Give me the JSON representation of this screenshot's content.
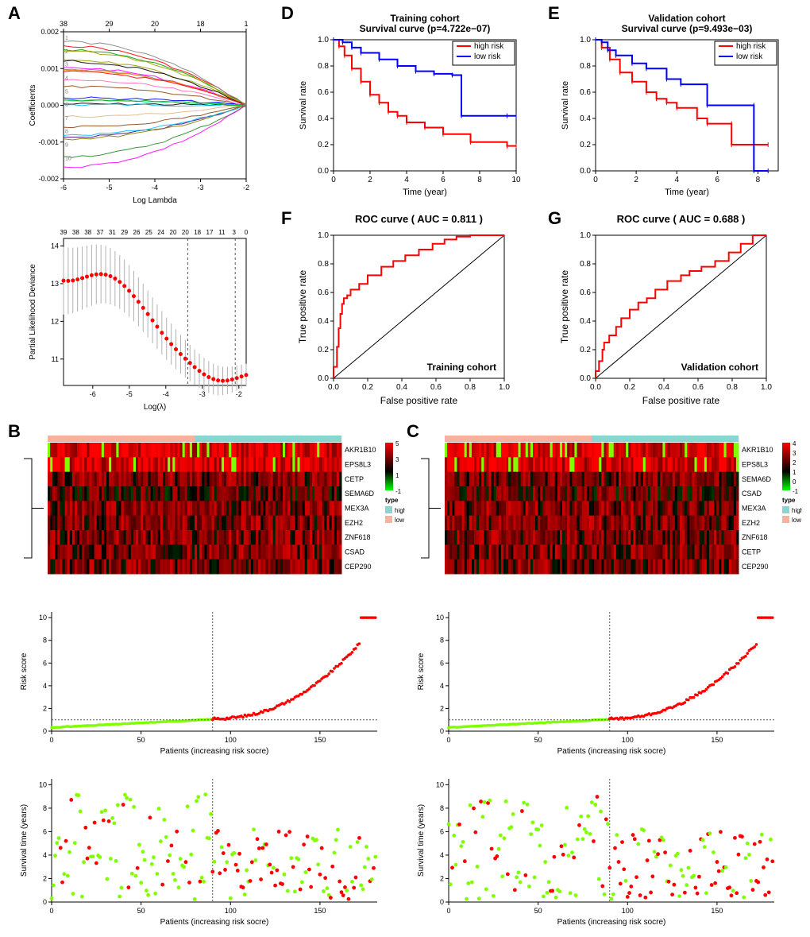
{
  "labels": {
    "A": "A",
    "B": "B",
    "C": "C",
    "D": "D",
    "E": "E",
    "F": "F",
    "G": "G"
  },
  "lasso": {
    "topticks": [
      "38",
      "29",
      "20",
      "18",
      "1"
    ],
    "ylabel": "Coefficients",
    "xlabel": "Log Lambda",
    "yticks": [
      "-0.002",
      "-0.001",
      "0.000",
      "0.001",
      "0.002"
    ],
    "xticks": [
      "-6",
      "-5",
      "-4",
      "-3",
      "-2"
    ],
    "line_colors": [
      "#000000",
      "#ff0000",
      "#00a000",
      "#00bfff",
      "#ff00ff",
      "#a0a000",
      "#808080",
      "#8b4513",
      "#00ff7f",
      "#0000ff",
      "#ff7f00",
      "#4b0082",
      "#228b22",
      "#deb887",
      "#808000",
      "#ff69b4"
    ]
  },
  "deviance": {
    "topticks": [
      "39",
      "38",
      "38",
      "37",
      "31",
      "29",
      "26",
      "25",
      "24",
      "20",
      "20",
      "18",
      "17",
      "11",
      "3",
      "0"
    ],
    "ylabel": "Partial Likelihood Deviance",
    "xlabel": "Log(λ)",
    "yticks": [
      "11",
      "12",
      "13",
      "14"
    ],
    "xticks": [
      "-6",
      "-5",
      "-4",
      "-3",
      "-2"
    ],
    "vlines": [
      -3.4,
      -2.1
    ],
    "points_color": "#ff0000",
    "error_color": "#b0b0b0"
  },
  "heatmap": {
    "genesB": [
      "AKR1B10",
      "EPS8L3",
      "CETP",
      "SEMA6D",
      "MEX3A",
      "EZH2",
      "ZNF618",
      "CSAD",
      "CEP290"
    ],
    "genesC": [
      "AKR1B10",
      "EPS8L3",
      "SEMA6D",
      "CSAD",
      "MEX3A",
      "EZH2",
      "ZNF618",
      "CETP",
      "CEP290"
    ],
    "legend_title": "type",
    "legend_high": "high",
    "legend_low": "low",
    "scale_ticksB": [
      "5",
      "3",
      "1",
      "-1"
    ],
    "scale_ticksC": [
      "4",
      "3",
      "2",
      "1",
      "0",
      "-1"
    ],
    "bar_high": "#f7b1a0",
    "bar_low": "#87d6d0",
    "scale_high": "#ff0000",
    "scale_mid": "#000000",
    "scale_low": "#00ff00"
  },
  "riskscore": {
    "ylabel": "Risk score",
    "xlabel": "Patients (increasing risk socre)",
    "yticks": [
      "0",
      "2",
      "4",
      "6",
      "8",
      "10"
    ],
    "xticks": [
      "0",
      "50",
      "100",
      "150"
    ],
    "low_color": "#7fff00",
    "high_color": "#ff0000",
    "cut": 90,
    "nB": 182,
    "nC": 182
  },
  "survscatter": {
    "ylabel": "Survival time (years)",
    "xlabel": "Patients (increasing risk socre)",
    "yticks": [
      "0",
      "2",
      "4",
      "6",
      "8",
      "10"
    ],
    "xticks": [
      "0",
      "50",
      "100",
      "150"
    ],
    "alive_color": "#7fff00",
    "dead_color": "#ff0000"
  },
  "km": {
    "D": {
      "title1": "Training cohort",
      "title2": "Survival curve (p=4.722e−07)",
      "xlabel": "Time (year)",
      "ylabel": "Survival rate",
      "xticks": [
        "0",
        "2",
        "4",
        "6",
        "8",
        "10"
      ],
      "yticks": [
        "0.0",
        "0.2",
        "0.4",
        "0.6",
        "0.8",
        "1.0"
      ],
      "high_color": "#ff0000",
      "low_color": "#0000ff",
      "legend_high": "high risk",
      "legend_low": "low risk",
      "high": [
        [
          0,
          1.0
        ],
        [
          0.3,
          0.95
        ],
        [
          0.6,
          0.88
        ],
        [
          1.0,
          0.78
        ],
        [
          1.5,
          0.68
        ],
        [
          2.0,
          0.58
        ],
        [
          2.5,
          0.52
        ],
        [
          3.0,
          0.45
        ],
        [
          3.5,
          0.42
        ],
        [
          4.0,
          0.37
        ],
        [
          5.0,
          0.33
        ],
        [
          6.0,
          0.28
        ],
        [
          7.5,
          0.22
        ],
        [
          9.5,
          0.19
        ],
        [
          10,
          0.19
        ]
      ],
      "low": [
        [
          0,
          1.0
        ],
        [
          0.5,
          0.98
        ],
        [
          1.0,
          0.94
        ],
        [
          1.5,
          0.9
        ],
        [
          2.5,
          0.85
        ],
        [
          3.5,
          0.8
        ],
        [
          4.5,
          0.76
        ],
        [
          5.5,
          0.74
        ],
        [
          6.5,
          0.73
        ],
        [
          7.0,
          0.42
        ],
        [
          9.5,
          0.42
        ],
        [
          10,
          0.42
        ]
      ]
    },
    "E": {
      "title1": "Validation cohort",
      "title2": "Survival curve (p=9.493e−03)",
      "xlabel": "Time (year)",
      "ylabel": "Survival rate",
      "xticks": [
        "0",
        "2",
        "4",
        "6",
        "8"
      ],
      "yticks": [
        "0.0",
        "0.2",
        "0.4",
        "0.6",
        "0.8",
        "1.0"
      ],
      "high_color": "#ff0000",
      "low_color": "#0000ff",
      "legend_high": "high risk",
      "legend_low": "low risk",
      "high": [
        [
          0,
          1.0
        ],
        [
          0.3,
          0.94
        ],
        [
          0.7,
          0.85
        ],
        [
          1.2,
          0.75
        ],
        [
          1.8,
          0.68
        ],
        [
          2.5,
          0.6
        ],
        [
          3.0,
          0.55
        ],
        [
          3.5,
          0.52
        ],
        [
          4.0,
          0.48
        ],
        [
          5.0,
          0.4
        ],
        [
          5.5,
          0.36
        ],
        [
          6.7,
          0.36
        ],
        [
          6.7,
          0.2
        ],
        [
          8.5,
          0.2
        ]
      ],
      "low": [
        [
          0,
          1.0
        ],
        [
          0.3,
          0.98
        ],
        [
          0.6,
          0.92
        ],
        [
          1.0,
          0.88
        ],
        [
          1.8,
          0.82
        ],
        [
          2.5,
          0.78
        ],
        [
          3.5,
          0.7
        ],
        [
          4.2,
          0.66
        ],
        [
          5.5,
          0.5
        ],
        [
          7.8,
          0.5
        ],
        [
          7.8,
          0.0
        ],
        [
          8.5,
          0.0
        ]
      ]
    }
  },
  "roc": {
    "F": {
      "title": "ROC curve ( AUC =  0.811 )",
      "cohort": "Training cohort",
      "xlabel": "False positive rate",
      "ylabel": "True positive rate",
      "ticks": [
        "0.0",
        "0.2",
        "0.4",
        "0.6",
        "0.8",
        "1.0"
      ],
      "line_color": "#ff0000",
      "curve": [
        [
          0,
          0
        ],
        [
          0.02,
          0.08
        ],
        [
          0.03,
          0.22
        ],
        [
          0.04,
          0.35
        ],
        [
          0.05,
          0.45
        ],
        [
          0.06,
          0.52
        ],
        [
          0.08,
          0.56
        ],
        [
          0.1,
          0.58
        ],
        [
          0.15,
          0.62
        ],
        [
          0.2,
          0.66
        ],
        [
          0.28,
          0.72
        ],
        [
          0.35,
          0.78
        ],
        [
          0.42,
          0.82
        ],
        [
          0.5,
          0.86
        ],
        [
          0.58,
          0.9
        ],
        [
          0.65,
          0.94
        ],
        [
          0.72,
          0.97
        ],
        [
          0.8,
          0.99
        ],
        [
          0.88,
          1.0
        ],
        [
          1.0,
          1.0
        ]
      ]
    },
    "G": {
      "title": "ROC curve ( AUC =  0.688 )",
      "cohort": "Validation cohort",
      "xlabel": "False positive rate",
      "ylabel": "True positive rate",
      "ticks": [
        "0.0",
        "0.2",
        "0.4",
        "0.6",
        "0.8",
        "1.0"
      ],
      "line_color": "#ff0000",
      "curve": [
        [
          0,
          0
        ],
        [
          0.02,
          0.05
        ],
        [
          0.04,
          0.12
        ],
        [
          0.05,
          0.2
        ],
        [
          0.08,
          0.25
        ],
        [
          0.12,
          0.3
        ],
        [
          0.15,
          0.36
        ],
        [
          0.2,
          0.42
        ],
        [
          0.25,
          0.48
        ],
        [
          0.3,
          0.53
        ],
        [
          0.35,
          0.56
        ],
        [
          0.42,
          0.62
        ],
        [
          0.5,
          0.68
        ],
        [
          0.55,
          0.72
        ],
        [
          0.62,
          0.75
        ],
        [
          0.7,
          0.78
        ],
        [
          0.78,
          0.82
        ],
        [
          0.85,
          0.88
        ],
        [
          0.92,
          0.94
        ],
        [
          1.0,
          1.0
        ]
      ]
    }
  }
}
